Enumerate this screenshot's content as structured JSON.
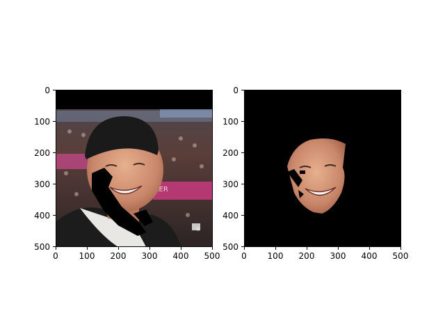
{
  "figure": {
    "panels": [
      {
        "name": "left-image",
        "x_ticks": [
          "0",
          "100",
          "200",
          "300",
          "400",
          "500"
        ],
        "y_ticks": [
          "0",
          "100",
          "200",
          "300",
          "400",
          "500"
        ]
      },
      {
        "name": "right-image",
        "x_ticks": [
          "0",
          "100",
          "200",
          "300",
          "400",
          "500"
        ],
        "y_ticks": [
          "0",
          "100",
          "200",
          "300",
          "400",
          "500"
        ]
      }
    ]
  }
}
